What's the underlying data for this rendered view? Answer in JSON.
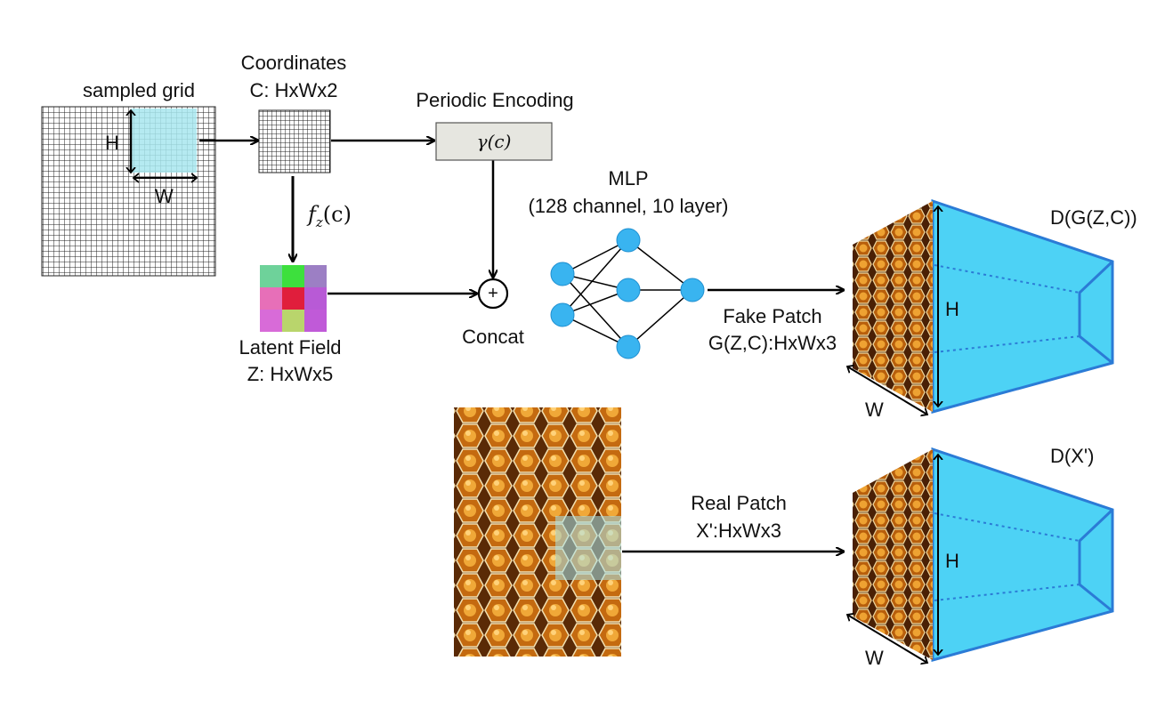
{
  "labels": {
    "sampled_grid": "sampled grid",
    "grid_h": "H",
    "grid_w": "W",
    "coordinates_title": "Coordinates",
    "coordinates_shape": "C: HxWx2",
    "periodic_encoding": "Periodic Encoding",
    "gamma": "γ(c)",
    "f_z": "f",
    "f_z_sub": "z",
    "f_z_arg": "(c)",
    "latent_field_title": "Latent Field",
    "latent_field_shape": "Z: HxWx5",
    "concat_symbol": "+",
    "concat": "Concat",
    "mlp_title": "MLP",
    "mlp_spec": "(128 channel, 10 layer)",
    "fake_patch_title": "Fake Patch",
    "fake_patch_shape": "G(Z,C):HxWx3",
    "disc_fake": "D(G(Z,C))",
    "disc_fake_h": "H",
    "disc_fake_w": "W",
    "real_patch_title": "Real Patch",
    "real_patch_shape": "X':HxWx3",
    "disc_real": "D(X')",
    "disc_real_h": "H",
    "disc_real_w": "W"
  },
  "colors": {
    "cyan_block": "#4dd2f5",
    "cyan_edge": "#2b7bd6",
    "mlp_node": "#39b4f0",
    "grid_highlight": "#a8e6ee",
    "encoding_box": "#e6e6e0",
    "honey_dark": "#5a2a06",
    "honey_cell": "#e0901f",
    "honey_wall": "#f3e0b0"
  },
  "latent_field_cells": [
    [
      "#6ed29a",
      "#3de03d",
      "#9c7fc4"
    ],
    [
      "#e76fb8",
      "#e01e3c",
      "#b85ad6"
    ],
    [
      "#d86bd8",
      "#b9d56c",
      "#c05ad8"
    ]
  ]
}
